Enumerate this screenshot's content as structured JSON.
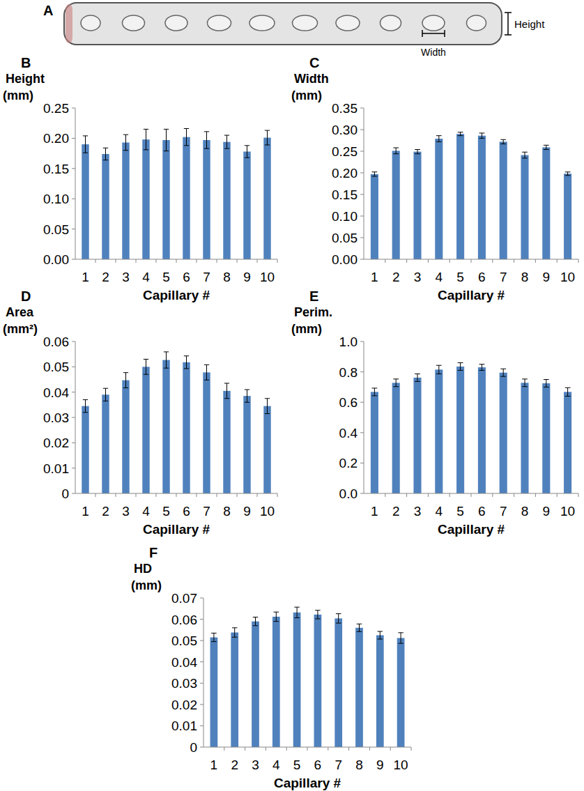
{
  "image": {
    "panel": "A",
    "height_label": "Height",
    "width_label": "Width"
  },
  "chart_data": [
    {
      "type": "bar",
      "panel": "B",
      "y_label": "Height (mm)",
      "x_label": "Capillary #",
      "categories": [
        "1",
        "2",
        "3",
        "4",
        "5",
        "6",
        "7",
        "8",
        "9",
        "10"
      ],
      "values": [
        0.19,
        0.174,
        0.193,
        0.198,
        0.197,
        0.202,
        0.197,
        0.194,
        0.178,
        0.201
      ],
      "errors": [
        0.014,
        0.01,
        0.013,
        0.017,
        0.018,
        0.014,
        0.014,
        0.011,
        0.01,
        0.012
      ],
      "color": "#4f81bd",
      "grid": false,
      "ylim": [
        0,
        0.25
      ],
      "yticks": [
        {
          "value": 0,
          "label": "0.00"
        },
        0.05,
        {
          "value": 0.1,
          "label": "0.10"
        },
        0.15,
        {
          "value": 0.2,
          "label": "0.20"
        },
        0.25
      ]
    },
    {
      "type": "bar",
      "panel": "C",
      "y_label": "Width (mm)",
      "x_label": "Capillary #",
      "categories": [
        "1",
        "2",
        "3",
        "4",
        "5",
        "6",
        "7",
        "8",
        "9",
        "10"
      ],
      "values": [
        0.197,
        0.251,
        0.249,
        0.279,
        0.29,
        0.286,
        0.272,
        0.241,
        0.259,
        0.198
      ],
      "errors": [
        0.005,
        0.007,
        0.005,
        0.007,
        0.004,
        0.006,
        0.005,
        0.007,
        0.005,
        0.004
      ],
      "color": "#4f81bd",
      "grid": false,
      "ylim": [
        0,
        0.35
      ],
      "yticks": [
        {
          "value": 0,
          "label": "0.00"
        },
        0.05,
        {
          "value": 0.1,
          "label": "0.10"
        },
        0.15,
        {
          "value": 0.2,
          "label": "0.20"
        },
        0.25,
        {
          "value": 0.3,
          "label": "0.30"
        },
        0.35
      ]
    },
    {
      "type": "bar",
      "panel": "D",
      "y_label": "Area (mm²)",
      "x_label": "Capillary #",
      "categories": [
        "1",
        "2",
        "3",
        "4",
        "5",
        "6",
        "7",
        "8",
        "9",
        "10"
      ],
      "values": [
        0.0345,
        0.039,
        0.0447,
        0.05,
        0.0527,
        0.0518,
        0.0478,
        0.0405,
        0.0385,
        0.0345
      ],
      "errors": [
        0.0025,
        0.0025,
        0.003,
        0.003,
        0.0032,
        0.0025,
        0.003,
        0.003,
        0.0025,
        0.003
      ],
      "color": "#4f81bd",
      "grid": false,
      "ylim": [
        0,
        0.06
      ],
      "yticks": [
        0,
        0.01,
        0.02,
        0.03,
        0.04,
        0.05,
        0.06
      ]
    },
    {
      "type": "bar",
      "panel": "E",
      "y_label": "Perim. (mm)",
      "x_label": "Capillary #",
      "categories": [
        "1",
        "2",
        "3",
        "4",
        "5",
        "6",
        "7",
        "8",
        "9",
        "10"
      ],
      "values": [
        0.668,
        0.728,
        0.762,
        0.815,
        0.835,
        0.83,
        0.795,
        0.728,
        0.725,
        0.668
      ],
      "errors": [
        0.025,
        0.025,
        0.025,
        0.028,
        0.025,
        0.02,
        0.025,
        0.025,
        0.025,
        0.028
      ],
      "color": "#4f81bd",
      "grid": false,
      "ylim": [
        0,
        1
      ],
      "yticks": [
        {
          "value": 0,
          "label": "0.0"
        },
        0.2,
        0.4,
        0.6,
        0.8,
        {
          "value": 1,
          "label": "1.0"
        }
      ]
    },
    {
      "type": "bar",
      "panel": "F",
      "y_label": "HD (mm)",
      "x_label": "Capillary #",
      "categories": [
        "1",
        "2",
        "3",
        "4",
        "5",
        "6",
        "7",
        "8",
        "9",
        "10"
      ],
      "values": [
        0.0515,
        0.0538,
        0.059,
        0.0612,
        0.0632,
        0.0622,
        0.0604,
        0.056,
        0.0525,
        0.0512
      ],
      "errors": [
        0.002,
        0.0022,
        0.002,
        0.0022,
        0.0025,
        0.002,
        0.0022,
        0.0018,
        0.0018,
        0.0025
      ],
      "color": "#4f81bd",
      "grid": false,
      "ylim": [
        0,
        0.07
      ],
      "yticks": [
        0,
        0.01,
        0.02,
        0.03,
        0.04,
        0.05,
        0.06,
        0.07
      ]
    }
  ]
}
